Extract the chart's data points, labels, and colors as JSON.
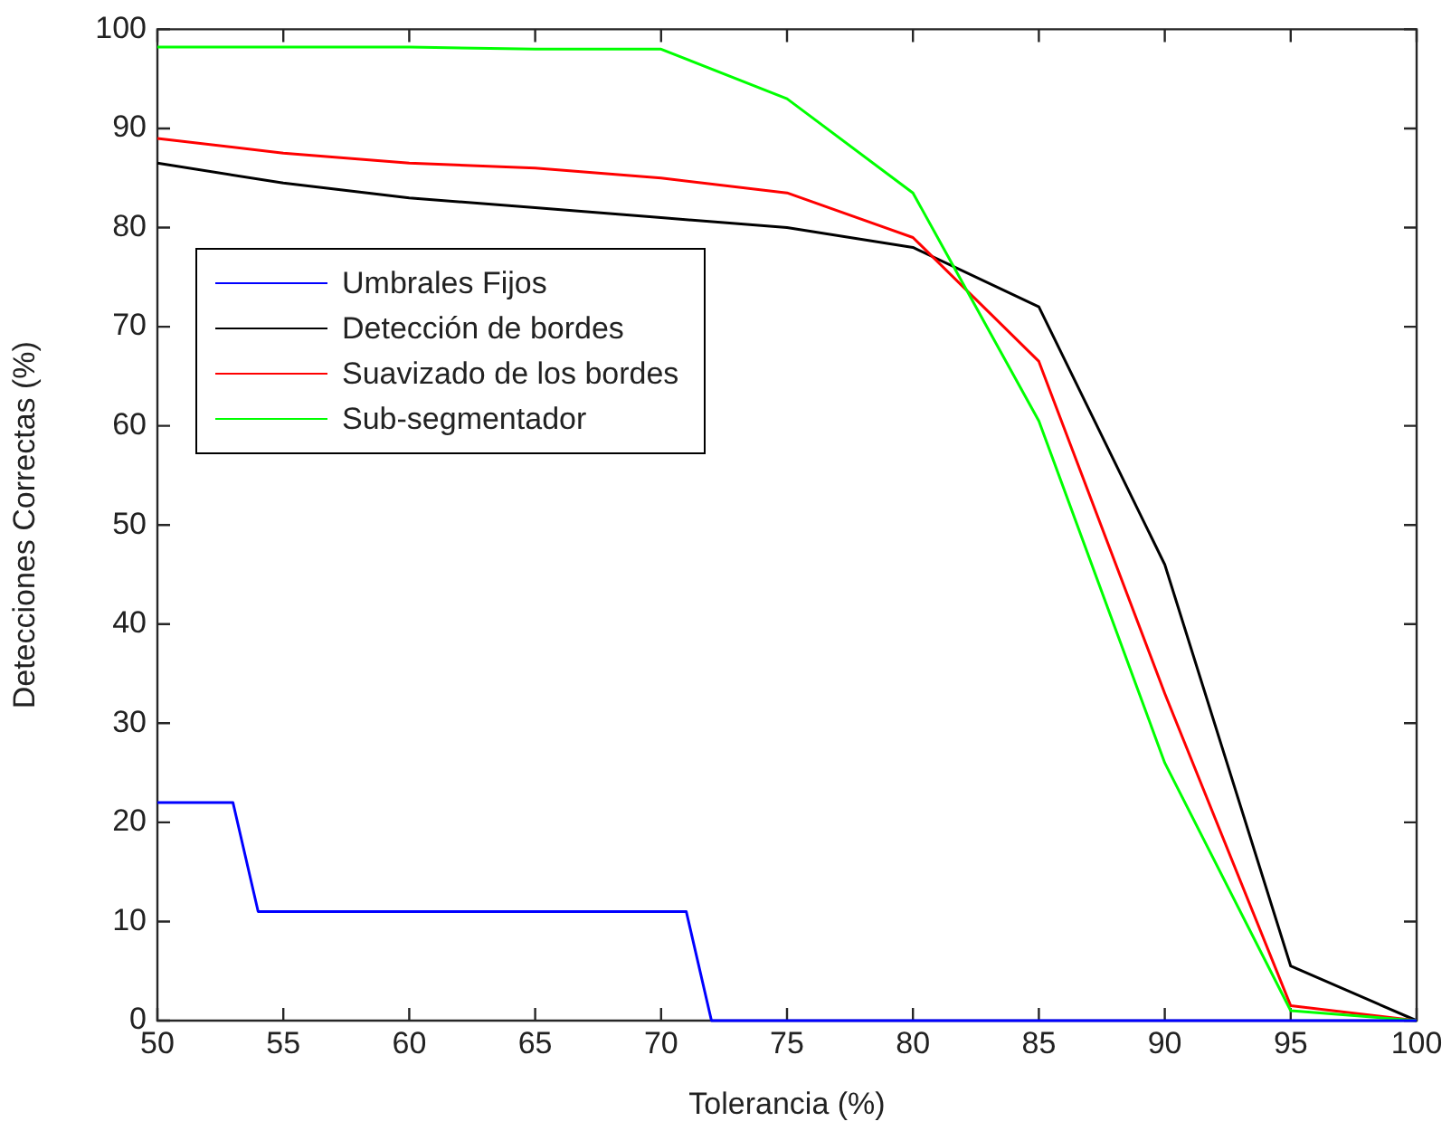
{
  "chart_data": {
    "type": "line",
    "xlabel": "Tolerancia (%)",
    "ylabel": "Detecciones Correctas (%)",
    "xlim": [
      50,
      100
    ],
    "xticks": [
      50,
      55,
      60,
      65,
      70,
      75,
      80,
      85,
      90,
      95,
      100
    ],
    "ylim": [
      0,
      100
    ],
    "yticks": [
      0,
      10,
      20,
      30,
      40,
      50,
      60,
      70,
      80,
      90,
      100
    ],
    "grid": false,
    "legend": "top left",
    "marker": "none",
    "line_style": "solid",
    "series": [
      {
        "name": "Umbrales Fijos",
        "color": "#0000ff",
        "x": [
          50,
          53,
          54,
          71,
          72,
          100
        ],
        "values": [
          22,
          22,
          11,
          11,
          0,
          0
        ]
      },
      {
        "name": "Detección de bordes",
        "color": "#000000",
        "x": [
          50,
          55,
          60,
          65,
          70,
          75,
          80,
          85,
          90,
          95,
          100
        ],
        "values": [
          86.5,
          84.5,
          83,
          82,
          81,
          80,
          78,
          72,
          46,
          5.5,
          0
        ]
      },
      {
        "name": "Suavizado de los bordes",
        "color": "#ff0000",
        "x": [
          50,
          55,
          60,
          65,
          70,
          75,
          80,
          85,
          90,
          95,
          100
        ],
        "values": [
          89,
          87.5,
          86.5,
          86,
          85,
          83.5,
          79,
          66.5,
          33,
          1.5,
          0
        ]
      },
      {
        "name": "Sub-segmentador",
        "color": "#00ff00",
        "x": [
          50,
          55,
          60,
          65,
          70,
          75,
          80,
          85,
          90,
          95,
          100
        ],
        "values": [
          98.2,
          98.2,
          98.2,
          98,
          98,
          93,
          83.5,
          60.5,
          26,
          1,
          0
        ]
      }
    ]
  }
}
